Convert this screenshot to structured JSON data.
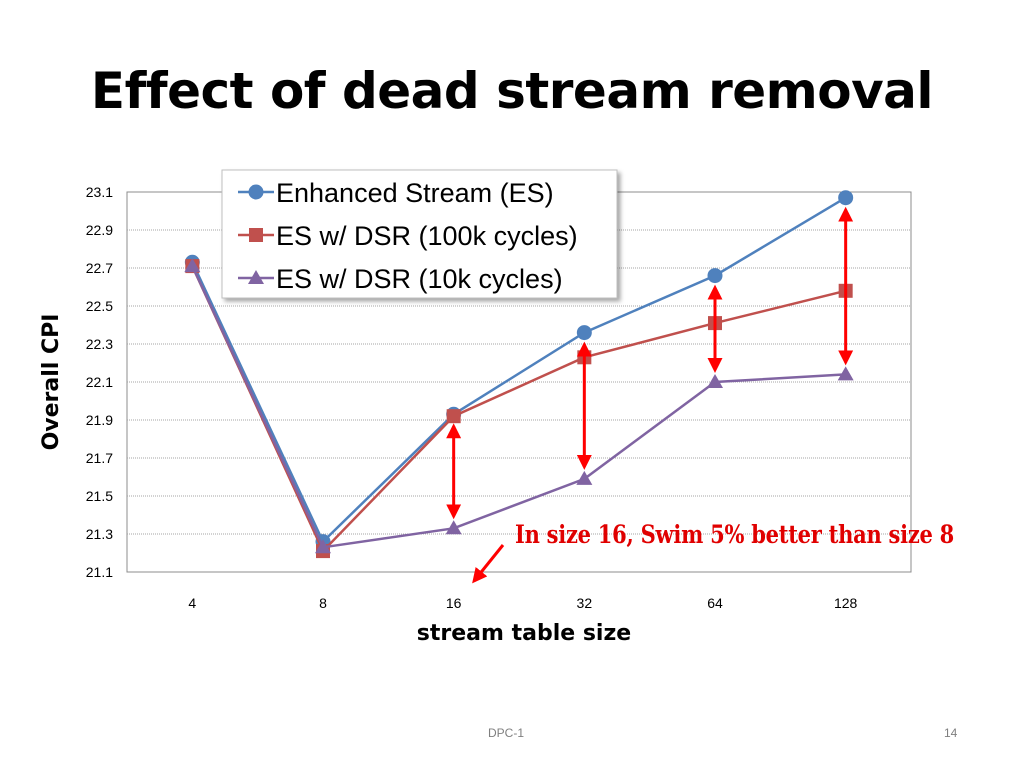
{
  "slide": {
    "title": "Effect of dead stream removal",
    "annotation": "In size 16, Swim 5% better than size 8",
    "footer_center": "DPC-1",
    "page_number": "14"
  },
  "chart_data": {
    "type": "line",
    "title": "",
    "xlabel": "stream table size",
    "ylabel": "Overall CPI",
    "categories": [
      "4",
      "8",
      "16",
      "32",
      "64",
      "128"
    ],
    "ylim": [
      21.1,
      23.1
    ],
    "yticks": [
      "21.1",
      "21.3",
      "21.5",
      "21.7",
      "21.9",
      "22.1",
      "22.3",
      "22.5",
      "22.7",
      "22.9",
      "23.1"
    ],
    "grid": true,
    "legend_position": "top-left",
    "series": [
      {
        "name": "Enhanced Stream (ES)",
        "marker": "circle",
        "color": "#4f81bd",
        "values": [
          22.73,
          21.26,
          21.93,
          22.36,
          22.66,
          23.07
        ]
      },
      {
        "name": "ES w/ DSR (100k cycles)",
        "marker": "square",
        "color": "#c0504d",
        "values": [
          22.71,
          21.21,
          21.92,
          22.23,
          22.41,
          22.58
        ]
      },
      {
        "name": "ES w/ DSR (10k cycles)",
        "marker": "triangle",
        "color": "#8064a2",
        "values": [
          22.71,
          21.23,
          21.33,
          21.59,
          22.1,
          22.14
        ]
      }
    ],
    "annotation_arrows_color": "#ff0000"
  }
}
